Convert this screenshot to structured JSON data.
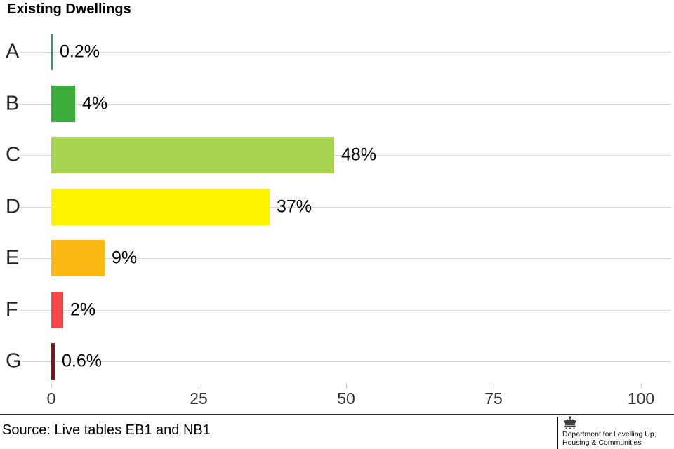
{
  "chart_data": {
    "type": "bar",
    "orientation": "horizontal",
    "title": "Existing Dwellings",
    "categories": [
      "A",
      "B",
      "C",
      "D",
      "E",
      "F",
      "G"
    ],
    "values": [
      0.2,
      4,
      48,
      37,
      9,
      2,
      0.6
    ],
    "value_labels": [
      "0.2%",
      "4%",
      "48%",
      "37%",
      "9%",
      "2%",
      "0.6%"
    ],
    "bar_colors": [
      "#2f9a5e",
      "#3cac3c",
      "#a6d44e",
      "#fff500",
      "#fdb913",
      "#f94546",
      "#8b1114"
    ],
    "xlabel": "",
    "ylabel": "",
    "xlim": [
      0,
      100
    ],
    "x_ticks": [
      "0",
      "25",
      "50",
      "75",
      "100"
    ],
    "x_tick_values": [
      0,
      25,
      50,
      75,
      100
    ],
    "grid": "horizontal category lines only",
    "legend": "none"
  },
  "footer": {
    "source": "Source: Live tables EB1 and NB1",
    "logo": {
      "icon": "royal-crest-icon",
      "line1": "Department for Levelling Up,",
      "line2": "Housing & Communities"
    }
  },
  "colors": {
    "gridline": "#d9d9d9",
    "axis_tick": "#c2c2c2",
    "title_text": "#000000",
    "tick_label_text": "#333333",
    "separator": "#2b2b2b"
  }
}
